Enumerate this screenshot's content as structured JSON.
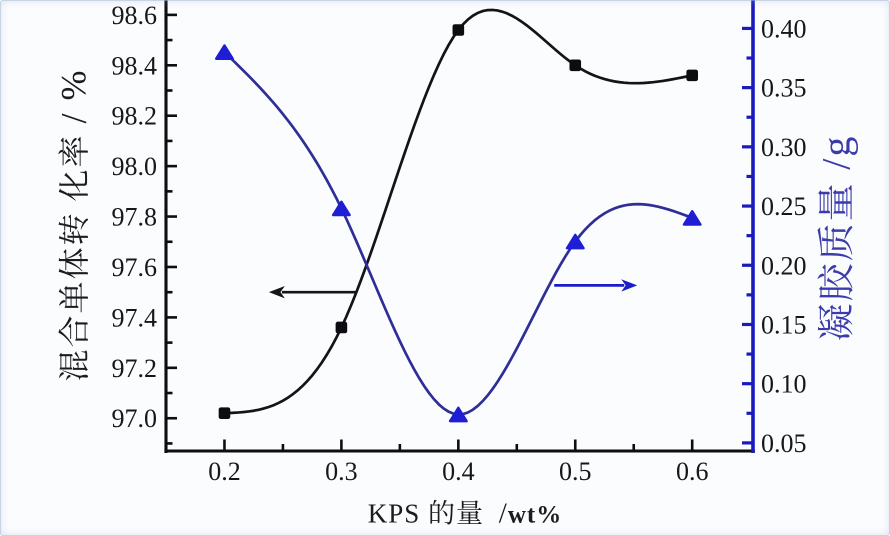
{
  "figure": {
    "background_color": "#fbfcfe",
    "frame_tint_color": "#a4b7d4"
  },
  "chart_data": {
    "type": "line",
    "dual_axis": true,
    "grid": false,
    "legend": null,
    "x": [
      0.2,
      0.3,
      0.4,
      0.5,
      0.6
    ],
    "series": [
      {
        "name": "混合单体转化率",
        "axis": "left",
        "line_style": "spline",
        "line_color": "#141418",
        "marker": "square",
        "marker_color": "#0d0d11",
        "values": [
          97.02,
          97.36,
          98.54,
          98.4,
          98.36
        ]
      },
      {
        "name": "凝胶质量",
        "axis": "right",
        "line_style": "spline",
        "line_color": "#2e2e96",
        "marker": "triangle-up",
        "marker_color": "#1e1ed4",
        "values": [
          0.38,
          0.248,
          0.074,
          0.22,
          0.24
        ]
      }
    ],
    "x_axis": {
      "label": "KPS 的量 /wt%",
      "range": [
        0.15,
        0.652
      ],
      "ticks": [
        0.2,
        0.3,
        0.4,
        0.5,
        0.6
      ],
      "tick_labels": [
        "0.2",
        "0.3",
        "0.4",
        "0.5",
        "0.6"
      ],
      "minor_step": 0.05,
      "line_color": "#0e0e12",
      "tick_label_color": "#17171a"
    },
    "left_axis": {
      "label": "混合单体转 化率 / %",
      "range": [
        96.874,
        98.659
      ],
      "ticks": [
        97.0,
        97.2,
        97.4,
        97.6,
        97.8,
        98.0,
        98.2,
        98.4,
        98.6
      ],
      "tick_labels": [
        "97.0",
        "97.2",
        "97.4",
        "97.6",
        "97.8",
        "98.0",
        "98.2",
        "98.4",
        "98.6"
      ],
      "minor_step": 0.1,
      "line_color": "#0e0e12",
      "tick_label_color": "#17171a"
    },
    "right_axis": {
      "label": "凝胶质量 /g",
      "range": [
        0.044,
        0.424
      ],
      "ticks": [
        0.05,
        0.1,
        0.15,
        0.2,
        0.25,
        0.3,
        0.35,
        0.4
      ],
      "tick_labels": [
        "0.05",
        "0.10",
        "0.15",
        "0.20",
        "0.25",
        "0.30",
        "0.35",
        "0.40"
      ],
      "minor_step": 0.025,
      "line_color": "#1a1abe",
      "tick_label_color": "#17171a"
    },
    "annotations": [
      {
        "type": "arrow",
        "meaning": "black curve reads on left axis",
        "axis": "left",
        "direction": "left",
        "y": 97.5,
        "x_tail": 0.313,
        "x_tip": 0.238,
        "color": "#151518"
      },
      {
        "type": "arrow",
        "meaning": "blue curve reads on right axis",
        "axis": "right",
        "direction": "right",
        "y": 0.183,
        "x_tail": 0.482,
        "x_tip": 0.553,
        "color": "#1c1ccc"
      }
    ]
  }
}
